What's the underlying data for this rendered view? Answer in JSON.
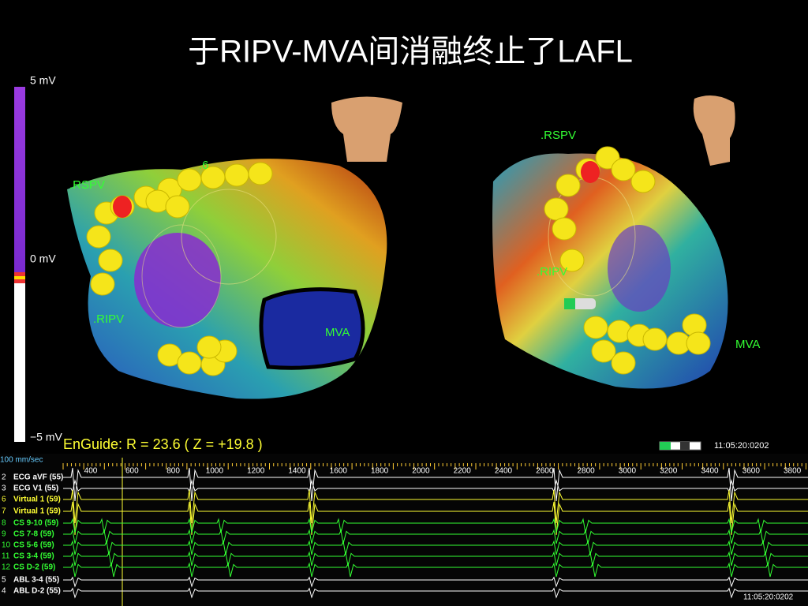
{
  "header": {
    "title": "于RIPV-MVA间消融终止了LAFL"
  },
  "voltage_scale": {
    "top": "5 mV",
    "middle": "0 mV",
    "bottom": "−5 mV"
  },
  "left_map": {
    "labels": [
      ".RSPV",
      ".6",
      ".RIPV",
      "MVA"
    ]
  },
  "right_map": {
    "labels": [
      ".RSPV",
      ".RIPV",
      "MVA"
    ]
  },
  "enguide": "EnGuide: R =  23.6   ( Z = +19.8 )",
  "clock_top": "11:05:20:0202",
  "recording": {
    "speed": "100 mm/sec",
    "ticks": [
      "400",
      "600",
      "800",
      "1000",
      "1200",
      "1400",
      "1600",
      "1800",
      "2000",
      "2200",
      "2400",
      "2600",
      "2800",
      "3000",
      "3200",
      "3400",
      "3600",
      "3800"
    ],
    "channels": [
      {
        "num": "2",
        "name": "ECG aVF (55)"
      },
      {
        "num": "3",
        "name": "ECG V1 (55)"
      },
      {
        "num": "6",
        "name": "Virtual 1 (59)"
      },
      {
        "num": "7",
        "name": "Virtual 1 (59)"
      },
      {
        "num": "8",
        "name": "CS 9-10 (59)"
      },
      {
        "num": "9",
        "name": "CS 7-8 (59)"
      },
      {
        "num": "10",
        "name": "CS 5-6 (59)"
      },
      {
        "num": "11",
        "name": "CS 3-4 (59)"
      },
      {
        "num": "12",
        "name": "CS D-2 (59)"
      },
      {
        "num": "5",
        "name": "ABL 3-4 (55)"
      },
      {
        "num": "4",
        "name": "ABL D-2 (55)"
      }
    ],
    "clock": "11:05:20:0202"
  }
}
